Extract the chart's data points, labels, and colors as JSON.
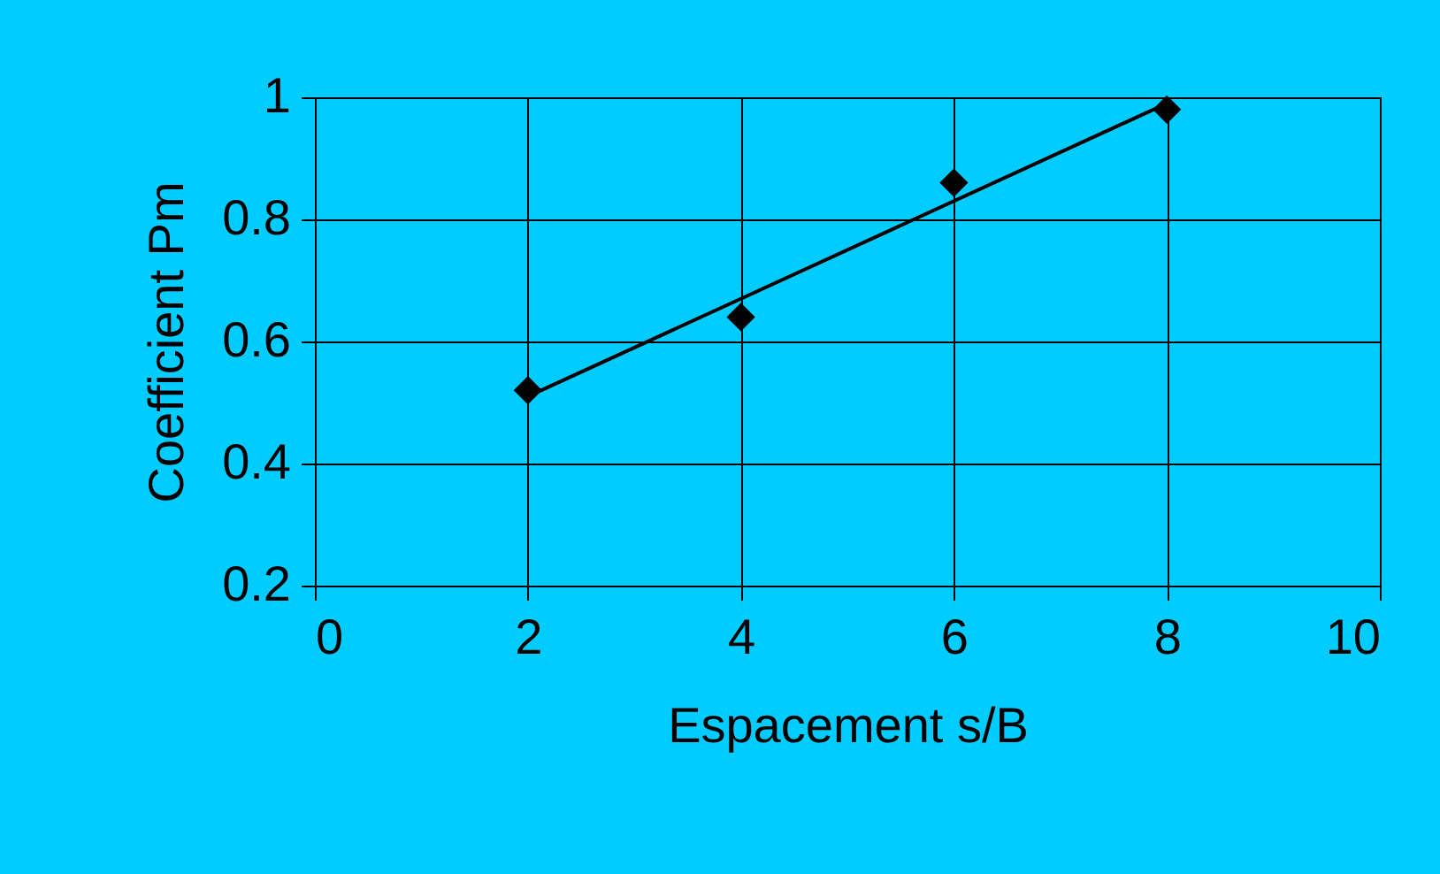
{
  "chart_data": {
    "type": "scatter",
    "xlabel": "Espacement s/B",
    "ylabel": "Coefficient Pm",
    "x": [
      2,
      4,
      6,
      8
    ],
    "series": [
      {
        "color": "#000000",
        "values": [
          0.52,
          0.64,
          0.86,
          0.98
        ],
        "marker": "diamond"
      },
      {
        "type": "line",
        "color": "#000000",
        "x": [
          2,
          8
        ],
        "values": [
          0.51,
          0.99
        ],
        "marker": "none",
        "line_style": "solid"
      }
    ],
    "xlim": [
      0,
      10
    ],
    "xticks": [
      0,
      2,
      4,
      6,
      8,
      10
    ],
    "ylim": [
      0.2,
      1
    ],
    "yticks": [
      0.2,
      0.4,
      0.6,
      0.8,
      1
    ],
    "grid": true
  }
}
